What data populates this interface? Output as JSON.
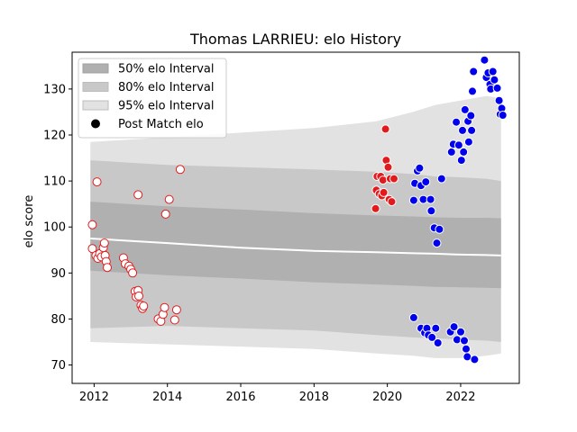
{
  "chart_data": {
    "type": "scatter",
    "title": "Thomas LARRIEU: elo History",
    "xlabel": "",
    "ylabel": "elo score",
    "xlim": [
      2011.4,
      2023.6
    ],
    "ylim": [
      66,
      138
    ],
    "xticks": [
      2012,
      2014,
      2016,
      2018,
      2020,
      2022
    ],
    "yticks": [
      70,
      80,
      90,
      100,
      110,
      120,
      130
    ],
    "legend": {
      "position": "top-left",
      "entries": [
        {
          "label": "50% elo Interval",
          "color": "#b0b0b0"
        },
        {
          "label": "80% elo Interval",
          "color": "#c8c8c8"
        },
        {
          "label": "95% elo Interval",
          "color": "#e2e2e2"
        },
        {
          "label": "Post Match elo",
          "color": "#000000"
        }
      ]
    },
    "bands": {
      "x": [
        2011.9,
        2014,
        2016,
        2018,
        2019.7,
        2020.7,
        2021.3,
        2022,
        2022.7,
        2023.1
      ],
      "mean": [
        97.5,
        96.5,
        95.5,
        94.8,
        94.5,
        94.3,
        94.2,
        94.0,
        93.9,
        93.8
      ],
      "p50_low": [
        90.5,
        89.5,
        88.8,
        88.0,
        87.5,
        87.2,
        87.0,
        86.9,
        86.8,
        86.7
      ],
      "p50_high": [
        105.5,
        104.5,
        103.8,
        103.0,
        102.5,
        102.3,
        102.1,
        102.0,
        102.0,
        101.9
      ],
      "p80_low": [
        78.0,
        78.5,
        78.0,
        77.5,
        76.5,
        76.0,
        75.8,
        75.5,
        75.3,
        75.0
      ],
      "p80_high": [
        114.5,
        113.5,
        113.0,
        112.5,
        112.0,
        111.5,
        111.0,
        110.8,
        110.5,
        110.0
      ],
      "p95_low": [
        75.0,
        74.5,
        74.0,
        73.5,
        72.5,
        72.0,
        71.5,
        71.5,
        72.0,
        72.5
      ],
      "p95_high": [
        118.5,
        119.5,
        120.5,
        121.5,
        123.0,
        125.0,
        126.5,
        127.5,
        128.5,
        128.0
      ]
    },
    "series": [
      {
        "color": "#e31a1c",
        "points": [
          [
            2011.95,
            100.5
          ],
          [
            2011.95,
            95.3
          ],
          [
            2012.05,
            93.8
          ],
          [
            2012.1,
            93.2
          ],
          [
            2012.15,
            94.2
          ],
          [
            2012.2,
            93.5
          ],
          [
            2012.25,
            95.5
          ],
          [
            2012.28,
            96.5
          ],
          [
            2012.3,
            93.8
          ],
          [
            2012.33,
            92.5
          ],
          [
            2012.36,
            91.2
          ],
          [
            2012.08,
            109.8
          ],
          [
            2012.8,
            93.3
          ],
          [
            2012.85,
            92.0
          ],
          [
            2012.95,
            91.5
          ],
          [
            2013.0,
            90.8
          ],
          [
            2013.05,
            90.0
          ],
          [
            2013.12,
            86.0
          ],
          [
            2013.15,
            84.8
          ],
          [
            2013.2,
            86.2
          ],
          [
            2013.22,
            85.0
          ],
          [
            2013.28,
            83.0
          ],
          [
            2013.32,
            82.3
          ],
          [
            2013.35,
            82.8
          ],
          [
            2013.2,
            107.0
          ],
          [
            2013.75,
            80.0
          ],
          [
            2013.82,
            79.5
          ],
          [
            2013.88,
            81.0
          ],
          [
            2013.92,
            82.5
          ],
          [
            2013.95,
            102.8
          ],
          [
            2014.05,
            106.0
          ],
          [
            2014.2,
            79.8
          ],
          [
            2014.25,
            82.0
          ],
          [
            2014.35,
            112.5
          ]
        ]
      },
      {
        "color": "#e31a1c",
        "points": [
          [
            2019.68,
            104.0
          ],
          [
            2019.7,
            108.0
          ],
          [
            2019.72,
            111.0
          ],
          [
            2019.78,
            107.2
          ],
          [
            2019.82,
            111.0
          ],
          [
            2019.85,
            106.8
          ],
          [
            2019.88,
            110.2
          ],
          [
            2019.9,
            107.5
          ],
          [
            2019.95,
            121.3
          ],
          [
            2019.97,
            114.5
          ],
          [
            2020.02,
            113.0
          ],
          [
            2020.05,
            106.0
          ],
          [
            2020.08,
            110.5
          ],
          [
            2020.12,
            105.5
          ],
          [
            2020.18,
            110.5
          ]
        ]
      },
      {
        "color": "#0000ee",
        "points": [
          [
            2020.72,
            80.3
          ],
          [
            2020.72,
            105.8
          ],
          [
            2020.75,
            109.5
          ],
          [
            2020.82,
            112.2
          ],
          [
            2020.88,
            112.8
          ],
          [
            2020.92,
            109.0
          ],
          [
            2020.92,
            78.0
          ],
          [
            2020.98,
            106.0
          ],
          [
            2021.02,
            77.0
          ],
          [
            2021.05,
            109.8
          ],
          [
            2021.08,
            78.0
          ],
          [
            2021.12,
            76.5
          ],
          [
            2021.18,
            106.0
          ],
          [
            2021.2,
            103.5
          ],
          [
            2021.22,
            76.0
          ],
          [
            2021.28,
            99.8
          ],
          [
            2021.32,
            78.0
          ],
          [
            2021.35,
            96.5
          ],
          [
            2021.38,
            74.8
          ],
          [
            2021.42,
            99.5
          ],
          [
            2021.48,
            110.5
          ],
          [
            2021.72,
            77.2
          ],
          [
            2021.75,
            116.3
          ],
          [
            2021.8,
            118.0
          ],
          [
            2021.82,
            78.3
          ],
          [
            2021.88,
            122.8
          ],
          [
            2021.9,
            75.5
          ],
          [
            2021.95,
            117.8
          ],
          [
            2022.0,
            77.2
          ],
          [
            2022.02,
            114.5
          ],
          [
            2022.05,
            121.0
          ],
          [
            2022.08,
            116.3
          ],
          [
            2022.1,
            75.3
          ],
          [
            2022.12,
            125.5
          ],
          [
            2022.15,
            73.5
          ],
          [
            2022.18,
            71.8
          ],
          [
            2022.2,
            123.0
          ],
          [
            2022.22,
            118.5
          ],
          [
            2022.28,
            124.2
          ],
          [
            2022.3,
            121.0
          ],
          [
            2022.32,
            129.5
          ],
          [
            2022.35,
            133.8
          ],
          [
            2022.38,
            71.2
          ],
          [
            2022.65,
            136.3
          ],
          [
            2022.7,
            132.5
          ],
          [
            2022.75,
            133.5
          ],
          [
            2022.8,
            131.0
          ],
          [
            2022.82,
            130.0
          ],
          [
            2022.88,
            133.8
          ],
          [
            2022.92,
            132.0
          ],
          [
            2023.0,
            130.2
          ],
          [
            2023.05,
            127.5
          ],
          [
            2023.08,
            124.5
          ],
          [
            2023.12,
            125.8
          ],
          [
            2023.15,
            124.3
          ]
        ]
      }
    ]
  }
}
